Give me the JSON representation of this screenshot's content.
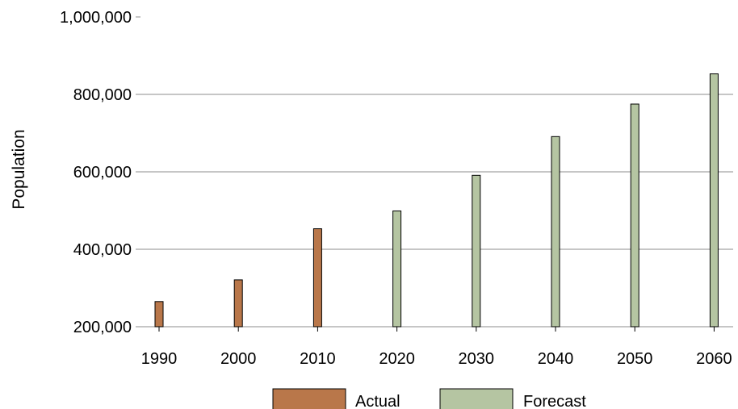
{
  "chart_data": {
    "type": "bar",
    "title": "",
    "xlabel": "",
    "ylabel": "Population",
    "ylim": [
      200000,
      1000000
    ],
    "yticks": [
      200000,
      400000,
      600000,
      800000,
      1000000
    ],
    "ytick_labels": [
      "200,000",
      "400,000",
      "600,000",
      "800,000",
      "1,000,000"
    ],
    "categories": [
      "1990",
      "2000",
      "2010",
      "2020",
      "2030",
      "2040",
      "2050",
      "2060"
    ],
    "series": [
      {
        "name": "Actual",
        "color": "#b9774a",
        "values": [
          265000,
          321000,
          453000,
          null,
          null,
          null,
          null,
          null
        ]
      },
      {
        "name": "Forecast",
        "color": "#b5c5a2",
        "values": [
          null,
          null,
          null,
          499000,
          591000,
          691000,
          775000,
          853000
        ]
      }
    ],
    "grid": "horizontal",
    "legend": "bottom"
  }
}
